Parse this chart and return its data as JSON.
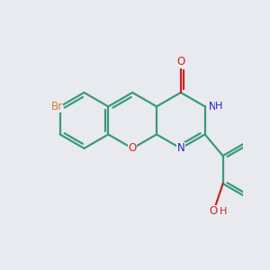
{
  "background_color": "#e8eaf0",
  "bond_color": "#3a9a7a",
  "bond_width": 1.6,
  "atom_colors": {
    "Br": "#cc8833",
    "O": "#cc2222",
    "N": "#2222cc",
    "C": "#3a9a7a"
  },
  "font_size": 8.5,
  "fig_width": 3.0,
  "fig_height": 3.0,
  "dpi": 100
}
